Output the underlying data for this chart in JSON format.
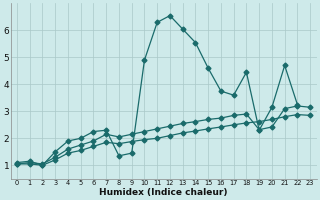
{
  "xlabel": "Humidex (Indice chaleur)",
  "background_color": "#ceeaea",
  "grid_color": "#aac8c8",
  "line_color": "#1a6b6b",
  "xlim": [
    -0.5,
    23.5
  ],
  "ylim": [
    0.5,
    7.0
  ],
  "xticks": [
    0,
    1,
    2,
    3,
    4,
    5,
    6,
    7,
    8,
    9,
    10,
    11,
    12,
    13,
    14,
    15,
    16,
    17,
    18,
    19,
    20,
    21,
    22,
    23
  ],
  "yticks": [
    1,
    2,
    3,
    4,
    5,
    6
  ],
  "series1_x": [
    0,
    1,
    2,
    3,
    4,
    5,
    6,
    7,
    8,
    9,
    10,
    11,
    12,
    13,
    14,
    15,
    16,
    17,
    18,
    19,
    20,
    21,
    22
  ],
  "series1_y": [
    1.1,
    1.15,
    1.0,
    1.5,
    1.9,
    2.0,
    2.25,
    2.3,
    1.35,
    1.45,
    4.9,
    6.3,
    6.55,
    6.05,
    5.55,
    4.6,
    3.75,
    3.6,
    4.45,
    2.3,
    3.15,
    4.7,
    3.25
  ],
  "series2_x": [
    0,
    1,
    2,
    3,
    4,
    5,
    6,
    7,
    8,
    9,
    10,
    11,
    12,
    13,
    14,
    15,
    16,
    17,
    18,
    19,
    20,
    21,
    22,
    23
  ],
  "series2_y": [
    1.05,
    1.1,
    1.05,
    1.3,
    1.6,
    1.75,
    1.9,
    2.15,
    2.05,
    2.15,
    2.25,
    2.35,
    2.45,
    2.55,
    2.62,
    2.7,
    2.75,
    2.85,
    2.9,
    2.32,
    2.42,
    3.1,
    3.2,
    3.15
  ],
  "series3_x": [
    0,
    1,
    2,
    3,
    4,
    5,
    6,
    7,
    8,
    9,
    10,
    11,
    12,
    13,
    14,
    15,
    16,
    17,
    18,
    19,
    20,
    21,
    22,
    23
  ],
  "series3_y": [
    1.05,
    1.05,
    1.0,
    1.2,
    1.45,
    1.55,
    1.7,
    1.85,
    1.8,
    1.88,
    1.95,
    2.0,
    2.1,
    2.2,
    2.27,
    2.35,
    2.42,
    2.5,
    2.57,
    2.62,
    2.7,
    2.8,
    2.88,
    2.85
  ],
  "marker": "D",
  "markersize": 2.5,
  "linewidth": 0.9
}
